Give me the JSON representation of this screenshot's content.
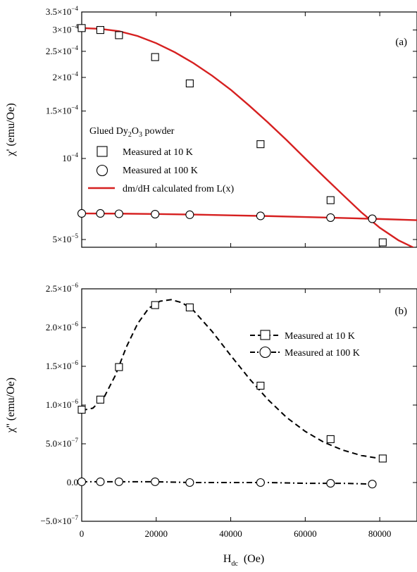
{
  "chart_data": [
    {
      "panel_label": "(a)",
      "type": "scatter",
      "ylabel": "χ' (emu/Oe)",
      "xlim": [
        0,
        90000
      ],
      "yscale": "log",
      "ylim": [
        4.68e-05,
        0.00035
      ],
      "y_ticks": [
        {
          "value": 0.00035,
          "label": "3.5×10",
          "exp": "−4"
        },
        {
          "value": 0.0003,
          "label": "3×10",
          "exp": "−4"
        },
        {
          "value": 0.00025,
          "label": "2.5×10",
          "exp": "−4"
        },
        {
          "value": 0.0002,
          "label": "2×10",
          "exp": "−4"
        },
        {
          "value": 0.00015,
          "label": "1.5×10",
          "exp": "−4"
        },
        {
          "value": 0.0001,
          "label": "10",
          "exp": "−4"
        },
        {
          "value": 5e-05,
          "label": "5×10",
          "exp": "−5"
        }
      ],
      "x_ticks": [
        0,
        20000,
        40000,
        60000,
        80000
      ],
      "legend": {
        "position": "center-left",
        "title_parts": [
          "Glued Dy",
          "2",
          "O",
          "3",
          " powder"
        ],
        "entries": [
          "Measured at 10 K",
          "Measured at 100 K",
          "dm/dH calculated from L(x)"
        ]
      },
      "series": [
        {
          "name": "Measured at 10 K",
          "marker": "square",
          "x": [
            0,
            5000,
            10000,
            19700,
            29000,
            48000,
            66800,
            80800
          ],
          "y": [
            0.000305,
            0.0003,
            0.000287,
            0.000238,
            0.00019,
            0.000113,
            7e-05,
            4.88e-05
          ]
        },
        {
          "name": "Measured at 100 K",
          "marker": "circle",
          "x": [
            0,
            5000,
            10000,
            19700,
            29000,
            48000,
            66800,
            78000
          ],
          "y": [
            6.25e-05,
            6.25e-05,
            6.23e-05,
            6.21e-05,
            6.18e-05,
            6.12e-05,
            6.03e-05,
            5.97e-05
          ]
        },
        {
          "name": "dm/dH calculated from L(x)",
          "style": "solid",
          "color": "#d62020",
          "x": [
            0,
            5000,
            10000,
            15000,
            20000,
            25000,
            30000,
            35000,
            40000,
            45000,
            50000,
            55000,
            60000,
            65000,
            70000,
            75000,
            80000,
            85000,
            90000
          ],
          "y": [
            0.000305,
            0.000303,
            0.000297,
            0.000285,
            0.000268,
            0.000248,
            0.000226,
            0.000203,
            0.00018,
            0.000157,
            0.000136,
            0.000117,
            0.0001,
            8.56e-05,
            7.35e-05,
            6.32e-05,
            5.53e-05,
            4.97e-05,
            4.6e-05
          ]
        },
        {
          "name": "",
          "style": "solid",
          "color": "#d62020",
          "x": [
            0,
            10000,
            20000,
            30000,
            40000,
            50000,
            60000,
            70000,
            80000,
            90000
          ],
          "y": [
            6.25e-05,
            6.24e-05,
            6.22e-05,
            6.19e-05,
            6.15e-05,
            6.11e-05,
            6.06e-05,
            6.01e-05,
            5.96e-05,
            5.9e-05
          ]
        }
      ]
    },
    {
      "panel_label": "(b)",
      "type": "scatter",
      "ylabel": "χ'' (emu/Oe)",
      "xlabel_main": "H",
      "xlabel_sub": "dc",
      "xlabel_unit": "(Oe)",
      "xlim": [
        0,
        90000
      ],
      "ylim": [
        -5e-07,
        2.5e-06
      ],
      "y_ticks": [
        {
          "value": -5e-07,
          "label": "−5.0×10",
          "exp": "−7"
        },
        {
          "value": 0,
          "label": "0.0",
          "exp": ""
        },
        {
          "value": 5e-07,
          "label": "5.0×10",
          "exp": "−7"
        },
        {
          "value": 1e-06,
          "label": "1.0×10",
          "exp": "−6"
        },
        {
          "value": 1.5e-06,
          "label": "1.5×10",
          "exp": "−6"
        },
        {
          "value": 2e-06,
          "label": "2.0×10",
          "exp": "−6"
        },
        {
          "value": 2.5e-06,
          "label": "2.5×10",
          "exp": "−6"
        }
      ],
      "x_ticks": [
        0,
        20000,
        40000,
        60000,
        80000
      ],
      "legend": {
        "position": "top-right",
        "entries": [
          "Measured at 10 K",
          "Measured at 100 K"
        ]
      },
      "series": [
        {
          "name": "Measured at 10 K",
          "marker": "square",
          "x": [
            0,
            5000,
            10000,
            19700,
            29000,
            48000,
            66800,
            80800
          ],
          "y": [
            9.4e-07,
            1.07e-06,
            1.49e-06,
            2.29e-06,
            2.26e-06,
            1.25e-06,
            5.6e-07,
            3.1e-07
          ]
        },
        {
          "name": "Measured at 100 K",
          "marker": "circle",
          "x": [
            0,
            5000,
            10000,
            19700,
            29000,
            48000,
            66800,
            78000
          ],
          "y": [
            1e-08,
            1e-08,
            1e-08,
            1e-08,
            0,
            0,
            -1e-08,
            -2e-08
          ]
        },
        {
          "name": "",
          "style": "dashed",
          "color": "#000000",
          "x": [
            0,
            3000,
            6000,
            9000,
            12000,
            15000,
            18000,
            21000,
            24000,
            27000,
            30000,
            35000,
            40000,
            45000,
            50000,
            55000,
            60000,
            65000,
            70000,
            75000,
            80000
          ],
          "y": [
            9.3e-07,
            9.6e-07,
            1.1e-06,
            1.38e-06,
            1.75e-06,
            2.05e-06,
            2.25e-06,
            2.34e-06,
            2.36e-06,
            2.32e-06,
            2.22e-06,
            1.95e-06,
            1.64e-06,
            1.34e-06,
            1.07e-06,
            8.4e-07,
            6.6e-07,
            5.2e-07,
            4.2e-07,
            3.5e-07,
            3.1e-07
          ]
        },
        {
          "name": "",
          "style": "dashdot",
          "color": "#000000",
          "x": [
            0,
            10000,
            20000,
            30000,
            40000,
            50000,
            60000,
            70000,
            78000
          ],
          "y": [
            1e-08,
            1e-08,
            1e-08,
            0,
            0,
            0,
            -1e-08,
            -1e-08,
            -2e-08
          ]
        }
      ]
    }
  ]
}
